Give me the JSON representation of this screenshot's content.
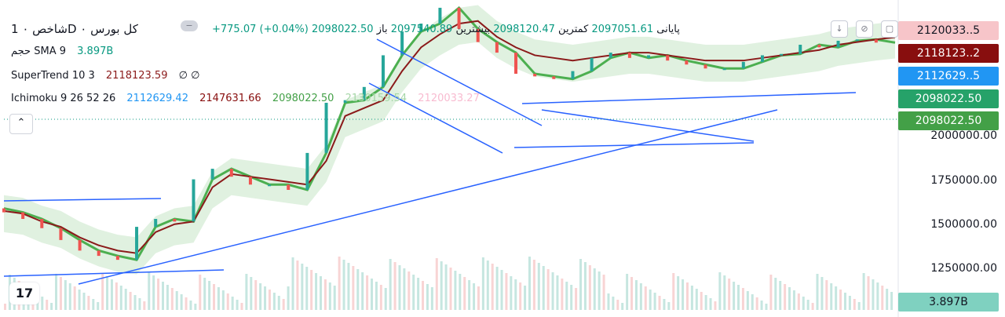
{
  "header": {
    "title": "شاخص ۰ 1D ۰ کل بورس",
    "ohlc_text": {
      "open_label": "باز",
      "open": "2097540.89",
      "high_label": "بیشترین",
      "high": "2098120.47",
      "low_label": "کمترین",
      "low": "2097051.61",
      "close_label": "پایانی",
      "close": "2098022.50",
      "change": "+775.07 (+0.04%)"
    },
    "volume_row": {
      "label": "حجم",
      "name": "SMA 9",
      "value": "3.897B"
    },
    "supertrend_row": {
      "name": "SuperTrend",
      "params": "10 3",
      "value": "2118123.59",
      "extra": "∅ ∅"
    },
    "ichimoku_row": {
      "name": "Ichimoku",
      "params": "9 26 52 26",
      "v1": "2112629.42",
      "v2": "2147631.66",
      "v3": "2098022.50",
      "v4": "2130159.54",
      "v5": "2120033.27"
    }
  },
  "axis": {
    "ticks": [
      "2000000.00",
      "1750000.00",
      "1500000.00",
      "1250000.00"
    ],
    "badges": [
      {
        "label": "2120033..5",
        "bg": "#f7c5c9",
        "fg": "#131722"
      },
      {
        "label": "2118123..2",
        "bg": "#880e0e",
        "fg": "#ffffff"
      },
      {
        "label": "2112629..5",
        "bg": "#2196f3",
        "fg": "#ffffff"
      },
      {
        "label": "2098022.50",
        "bg": "#26a269",
        "fg": "#ffffff"
      },
      {
        "label": "2098022.50",
        "bg": "#43a047",
        "fg": "#ffffff"
      }
    ],
    "volume_badge": {
      "label": "3.897B",
      "bg": "#7fd1c0"
    }
  },
  "colors": {
    "up": "#26a69a",
    "down": "#ef5350",
    "price_line": "#089981",
    "trend_blue": "#2962ff",
    "supertrend": "#8b1a1a",
    "green": "#4caf50",
    "cloud_green": "#a5d6a7",
    "cloud_red": "#f8bbd0"
  },
  "icons": [
    "down-arrow-icon",
    "eye-off-icon",
    "maximize-icon",
    "collapse-chevron-icon",
    "tradingview-logo-icon"
  ],
  "chart_data": {
    "type": "line",
    "title": "شاخص ۰ 1D ۰ کل بورس",
    "ylim": [
      1100000,
      2200000
    ],
    "grid": false,
    "series": [
      {
        "name": "شاخص",
        "values": [
          1470000,
          1455000,
          1430000,
          1395000,
          1350000,
          1310000,
          1290000,
          1275000,
          1400000,
          1430000,
          1420000,
          1580000,
          1620000,
          1590000,
          1560000,
          1560000,
          1540000,
          1680000,
          1870000,
          1880000,
          1930000,
          2050000,
          2140000,
          2170000,
          2230000,
          2150000,
          2100000,
          2060000,
          1980000,
          1970000,
          1960000,
          1990000,
          2040000,
          2060000,
          2040000,
          2050000,
          2030000,
          2015000,
          2000000,
          2000000,
          2025000,
          2050000,
          2055000,
          2090000,
          2080000,
          2105000,
          2110000,
          2098022
        ]
      },
      {
        "name": "SuperTrend",
        "values": [
          1460000,
          1450000,
          1420000,
          1400000,
          1360000,
          1330000,
          1310000,
          1300000,
          1380000,
          1410000,
          1420000,
          1550000,
          1600000,
          1590000,
          1580000,
          1570000,
          1560000,
          1650000,
          1820000,
          1850000,
          1880000,
          1990000,
          2080000,
          2130000,
          2170000,
          2180000,
          2120000,
          2080000,
          2050000,
          2040000,
          2030000,
          2040000,
          2050000,
          2060000,
          2060000,
          2050000,
          2040000,
          2030000,
          2030000,
          2030000,
          2040000,
          2050000,
          2060000,
          2070000,
          2090000,
          2100000,
          2110000,
          2118123
        ]
      }
    ]
  }
}
